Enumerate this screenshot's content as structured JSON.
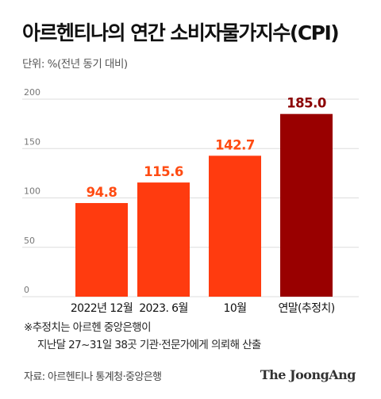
{
  "title": "아르헨티나의 연간 소비자물가지수(CPI)",
  "unit": "단위: %(전년 동기 대비)",
  "chart_data": {
    "type": "bar",
    "categories": [
      "2022년 12월",
      "2023. 6월",
      "10월",
      "연말(추정치)"
    ],
    "values": [
      94.8,
      115.6,
      142.7,
      185.0
    ],
    "value_labels": [
      "94.8",
      "115.6",
      "142.7",
      "185.0"
    ],
    "ylim": [
      0,
      200
    ],
    "yticks": [
      0,
      50,
      100,
      150,
      200
    ],
    "grid": true,
    "colors": {
      "actual_bar": "#ff3b0f",
      "actual_label": "#ff4b12",
      "estimate_bar": "#990000",
      "estimate_label": "#8b0000",
      "grid": "#dddddd"
    }
  },
  "footnote": {
    "line1": "※추정치는 아르헨 중앙은행이",
    "line2": "지난달 27~31일 38곳 기관·전문가에게 의뢰해 산출"
  },
  "source": "자료: 아르헨티나 통계청·중앙은행",
  "brand": "The JoongAng"
}
